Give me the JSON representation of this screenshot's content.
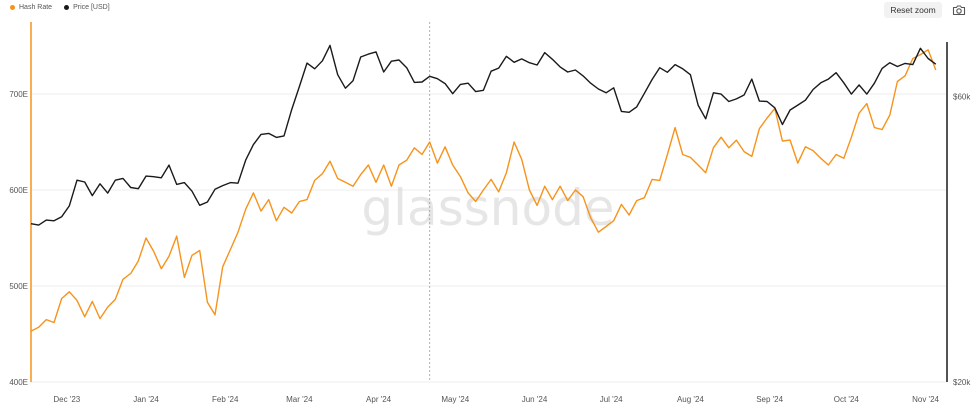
{
  "legend": {
    "hash_label": "Hash Rate",
    "price_label": "Price [USD]"
  },
  "toolbar": {
    "reset_zoom_label": "Reset zoom",
    "camera_icon": "camera-icon"
  },
  "watermark": "glassnode",
  "colors": {
    "hash_rate": "#f7931a",
    "price": "#1a1a1a",
    "grid": "#eeeeee",
    "crosshair": "#9e9e9e"
  },
  "chart_data": {
    "type": "line",
    "x_axis": {
      "type": "date",
      "ticks": [
        {
          "label": "Dec '23",
          "date": "2023-12-01"
        },
        {
          "label": "Jan '24",
          "date": "2024-01-01"
        },
        {
          "label": "Feb '24",
          "date": "2024-02-01"
        },
        {
          "label": "Mar '24",
          "date": "2024-03-01"
        },
        {
          "label": "Apr '24",
          "date": "2024-04-01"
        },
        {
          "label": "May '24",
          "date": "2024-05-01"
        },
        {
          "label": "Jun '24",
          "date": "2024-06-01"
        },
        {
          "label": "Jul '24",
          "date": "2024-07-01"
        },
        {
          "label": "Aug '24",
          "date": "2024-08-01"
        },
        {
          "label": "Sep '24",
          "date": "2024-09-01"
        },
        {
          "label": "Oct '24",
          "date": "2024-10-01"
        },
        {
          "label": "Nov '24",
          "date": "2024-11-01"
        }
      ],
      "range": [
        "2023-11-17",
        "2024-11-09"
      ]
    },
    "y_left": {
      "ticks": [
        {
          "label": "400E",
          "value": 400
        },
        {
          "label": "500E",
          "value": 500
        },
        {
          "label": "600E",
          "value": 600
        },
        {
          "label": "700E",
          "value": 700
        }
      ],
      "range": [
        400,
        775
      ]
    },
    "y_right": {
      "scale": "log",
      "ticks": [
        {
          "label": "$20k",
          "value": 20000
        },
        {
          "label": "$60k",
          "value": 60000
        }
      ],
      "range": [
        20000,
        80000
      ]
    },
    "grid": true,
    "crosshair_date": "2024-04-21",
    "series": [
      {
        "name": "Hash Rate",
        "axis": "left",
        "points": [
          [
            "2023-11-17",
            453
          ],
          [
            "2023-11-20",
            457
          ],
          [
            "2023-11-23",
            465
          ],
          [
            "2023-11-26",
            462
          ],
          [
            "2023-11-29",
            487
          ],
          [
            "2023-12-02",
            494
          ],
          [
            "2023-12-05",
            485
          ],
          [
            "2023-12-08",
            468
          ],
          [
            "2023-12-11",
            484
          ],
          [
            "2023-12-14",
            466
          ],
          [
            "2023-12-17",
            478
          ],
          [
            "2023-12-20",
            486
          ],
          [
            "2023-12-23",
            507
          ],
          [
            "2023-12-26",
            513
          ],
          [
            "2023-12-29",
            526
          ],
          [
            "2024-01-01",
            550
          ],
          [
            "2024-01-04",
            536
          ],
          [
            "2024-01-07",
            518
          ],
          [
            "2024-01-10",
            531
          ],
          [
            "2024-01-13",
            552
          ],
          [
            "2024-01-16",
            509
          ],
          [
            "2024-01-19",
            532
          ],
          [
            "2024-01-22",
            537
          ],
          [
            "2024-01-25",
            483
          ],
          [
            "2024-01-28",
            470
          ],
          [
            "2024-01-31",
            520
          ],
          [
            "2024-02-03",
            538
          ],
          [
            "2024-02-06",
            556
          ],
          [
            "2024-02-09",
            580
          ],
          [
            "2024-02-12",
            597
          ],
          [
            "2024-02-15",
            578
          ],
          [
            "2024-02-18",
            590
          ],
          [
            "2024-02-21",
            568
          ],
          [
            "2024-02-24",
            582
          ],
          [
            "2024-02-27",
            576
          ],
          [
            "2024-03-01",
            588
          ],
          [
            "2024-03-04",
            590
          ],
          [
            "2024-03-07",
            610
          ],
          [
            "2024-03-10",
            617
          ],
          [
            "2024-03-13",
            630
          ],
          [
            "2024-03-16",
            612
          ],
          [
            "2024-03-19",
            608
          ],
          [
            "2024-03-22",
            604
          ],
          [
            "2024-03-25",
            616
          ],
          [
            "2024-03-28",
            626
          ],
          [
            "2024-03-31",
            608
          ],
          [
            "2024-04-03",
            626
          ],
          [
            "2024-04-06",
            604
          ],
          [
            "2024-04-09",
            626
          ],
          [
            "2024-04-12",
            631
          ],
          [
            "2024-04-15",
            644
          ],
          [
            "2024-04-18",
            637
          ],
          [
            "2024-04-21",
            650
          ],
          [
            "2024-04-24",
            628
          ],
          [
            "2024-04-27",
            645
          ],
          [
            "2024-04-30",
            626
          ],
          [
            "2024-05-03",
            614
          ],
          [
            "2024-05-06",
            597
          ],
          [
            "2024-05-09",
            588
          ],
          [
            "2024-05-12",
            600
          ],
          [
            "2024-05-15",
            611
          ],
          [
            "2024-05-18",
            598
          ],
          [
            "2024-05-21",
            618
          ],
          [
            "2024-05-24",
            650
          ],
          [
            "2024-05-27",
            632
          ],
          [
            "2024-05-30",
            600
          ],
          [
            "2024-06-02",
            584
          ],
          [
            "2024-06-05",
            604
          ],
          [
            "2024-06-08",
            590
          ],
          [
            "2024-06-11",
            604
          ],
          [
            "2024-06-14",
            589
          ],
          [
            "2024-06-17",
            600
          ],
          [
            "2024-06-20",
            593
          ],
          [
            "2024-06-23",
            571
          ],
          [
            "2024-06-26",
            556
          ],
          [
            "2024-06-29",
            562
          ],
          [
            "2024-07-02",
            568
          ],
          [
            "2024-07-05",
            585
          ],
          [
            "2024-07-08",
            574
          ],
          [
            "2024-07-11",
            589
          ],
          [
            "2024-07-14",
            592
          ],
          [
            "2024-07-17",
            611
          ],
          [
            "2024-07-20",
            610
          ],
          [
            "2024-07-23",
            637
          ],
          [
            "2024-07-26",
            665
          ],
          [
            "2024-07-29",
            637
          ],
          [
            "2024-08-01",
            634
          ],
          [
            "2024-08-04",
            626
          ],
          [
            "2024-08-07",
            618
          ],
          [
            "2024-08-10",
            644
          ],
          [
            "2024-08-13",
            655
          ],
          [
            "2024-08-16",
            644
          ],
          [
            "2024-08-19",
            652
          ],
          [
            "2024-08-22",
            640
          ],
          [
            "2024-08-25",
            635
          ],
          [
            "2024-08-28",
            664
          ],
          [
            "2024-08-31",
            675
          ],
          [
            "2024-09-03",
            685
          ],
          [
            "2024-09-06",
            651
          ],
          [
            "2024-09-09",
            652
          ],
          [
            "2024-09-12",
            628
          ],
          [
            "2024-09-15",
            645
          ],
          [
            "2024-09-18",
            641
          ],
          [
            "2024-09-21",
            633
          ],
          [
            "2024-09-24",
            626
          ],
          [
            "2024-09-27",
            637
          ],
          [
            "2024-09-30",
            633
          ],
          [
            "2024-10-03",
            655
          ],
          [
            "2024-10-06",
            680
          ],
          [
            "2024-10-09",
            690
          ],
          [
            "2024-10-12",
            665
          ],
          [
            "2024-10-15",
            663
          ],
          [
            "2024-10-18",
            678
          ],
          [
            "2024-10-21",
            713
          ],
          [
            "2024-10-24",
            719
          ],
          [
            "2024-10-27",
            737
          ],
          [
            "2024-10-30",
            741
          ],
          [
            "2024-11-02",
            746
          ],
          [
            "2024-11-05",
            725
          ]
        ]
      },
      {
        "name": "Price [USD]",
        "axis": "right",
        "points": [
          [
            "2023-11-17",
            36800
          ],
          [
            "2023-11-20",
            36600
          ],
          [
            "2023-11-23",
            37300
          ],
          [
            "2023-11-26",
            37200
          ],
          [
            "2023-11-29",
            37800
          ],
          [
            "2023-12-02",
            39400
          ],
          [
            "2023-12-05",
            43500
          ],
          [
            "2023-12-08",
            43200
          ],
          [
            "2023-12-11",
            41000
          ],
          [
            "2023-12-14",
            42900
          ],
          [
            "2023-12-17",
            41400
          ],
          [
            "2023-12-20",
            43500
          ],
          [
            "2023-12-23",
            43800
          ],
          [
            "2023-12-26",
            42300
          ],
          [
            "2023-12-29",
            42100
          ],
          [
            "2024-01-01",
            44200
          ],
          [
            "2024-01-04",
            44100
          ],
          [
            "2024-01-07",
            43900
          ],
          [
            "2024-01-10",
            46100
          ],
          [
            "2024-01-13",
            42800
          ],
          [
            "2024-01-16",
            43100
          ],
          [
            "2024-01-19",
            41700
          ],
          [
            "2024-01-22",
            39500
          ],
          [
            "2024-01-25",
            40000
          ],
          [
            "2024-01-28",
            42000
          ],
          [
            "2024-01-31",
            42600
          ],
          [
            "2024-02-03",
            43100
          ],
          [
            "2024-02-06",
            43000
          ],
          [
            "2024-02-09",
            47000
          ],
          [
            "2024-02-12",
            49900
          ],
          [
            "2024-02-15",
            51900
          ],
          [
            "2024-02-18",
            52100
          ],
          [
            "2024-02-21",
            51300
          ],
          [
            "2024-02-24",
            51600
          ],
          [
            "2024-02-27",
            57100
          ],
          [
            "2024-03-01",
            62400
          ],
          [
            "2024-03-04",
            68300
          ],
          [
            "2024-03-07",
            66800
          ],
          [
            "2024-03-10",
            68900
          ],
          [
            "2024-03-13",
            73100
          ],
          [
            "2024-03-16",
            65300
          ],
          [
            "2024-03-19",
            62000
          ],
          [
            "2024-03-22",
            63800
          ],
          [
            "2024-03-25",
            69900
          ],
          [
            "2024-03-28",
            70700
          ],
          [
            "2024-03-31",
            71300
          ],
          [
            "2024-04-03",
            66000
          ],
          [
            "2024-04-06",
            68800
          ],
          [
            "2024-04-09",
            69100
          ],
          [
            "2024-04-12",
            67100
          ],
          [
            "2024-04-15",
            63400
          ],
          [
            "2024-04-18",
            63500
          ],
          [
            "2024-04-21",
            64900
          ],
          [
            "2024-04-24",
            64300
          ],
          [
            "2024-04-27",
            63100
          ],
          [
            "2024-04-30",
            60700
          ],
          [
            "2024-05-03",
            62900
          ],
          [
            "2024-05-06",
            63200
          ],
          [
            "2024-05-09",
            61200
          ],
          [
            "2024-05-12",
            61500
          ],
          [
            "2024-05-15",
            66200
          ],
          [
            "2024-05-18",
            67000
          ],
          [
            "2024-05-21",
            70100
          ],
          [
            "2024-05-24",
            68500
          ],
          [
            "2024-05-27",
            69400
          ],
          [
            "2024-05-30",
            68400
          ],
          [
            "2024-06-02",
            67800
          ],
          [
            "2024-06-05",
            71100
          ],
          [
            "2024-06-08",
            69300
          ],
          [
            "2024-06-11",
            67300
          ],
          [
            "2024-06-14",
            66000
          ],
          [
            "2024-06-17",
            66500
          ],
          [
            "2024-06-20",
            65000
          ],
          [
            "2024-06-23",
            63200
          ],
          [
            "2024-06-26",
            61800
          ],
          [
            "2024-06-29",
            60900
          ],
          [
            "2024-07-02",
            62100
          ],
          [
            "2024-07-05",
            56700
          ],
          [
            "2024-07-08",
            56500
          ],
          [
            "2024-07-11",
            57700
          ],
          [
            "2024-07-14",
            60800
          ],
          [
            "2024-07-17",
            64100
          ],
          [
            "2024-07-20",
            67100
          ],
          [
            "2024-07-23",
            65900
          ],
          [
            "2024-07-26",
            67900
          ],
          [
            "2024-07-29",
            66800
          ],
          [
            "2024-08-01",
            65300
          ],
          [
            "2024-08-04",
            58100
          ],
          [
            "2024-08-07",
            55100
          ],
          [
            "2024-08-10",
            60900
          ],
          [
            "2024-08-13",
            60600
          ],
          [
            "2024-08-16",
            58900
          ],
          [
            "2024-08-19",
            59500
          ],
          [
            "2024-08-22",
            60400
          ],
          [
            "2024-08-25",
            64200
          ],
          [
            "2024-08-28",
            59000
          ],
          [
            "2024-08-31",
            58900
          ],
          [
            "2024-09-03",
            57500
          ],
          [
            "2024-09-06",
            53900
          ],
          [
            "2024-09-09",
            57000
          ],
          [
            "2024-09-12",
            58100
          ],
          [
            "2024-09-15",
            59200
          ],
          [
            "2024-09-18",
            61700
          ],
          [
            "2024-09-21",
            63300
          ],
          [
            "2024-09-24",
            64200
          ],
          [
            "2024-09-27",
            65800
          ],
          [
            "2024-09-30",
            63300
          ],
          [
            "2024-10-03",
            60600
          ],
          [
            "2024-10-06",
            62800
          ],
          [
            "2024-10-09",
            60600
          ],
          [
            "2024-10-12",
            63200
          ],
          [
            "2024-10-15",
            66900
          ],
          [
            "2024-10-18",
            68400
          ],
          [
            "2024-10-21",
            67400
          ],
          [
            "2024-10-24",
            68200
          ],
          [
            "2024-10-27",
            67900
          ],
          [
            "2024-10-30",
            72300
          ],
          [
            "2024-11-02",
            69500
          ],
          [
            "2024-11-05",
            68000
          ]
        ]
      }
    ]
  }
}
